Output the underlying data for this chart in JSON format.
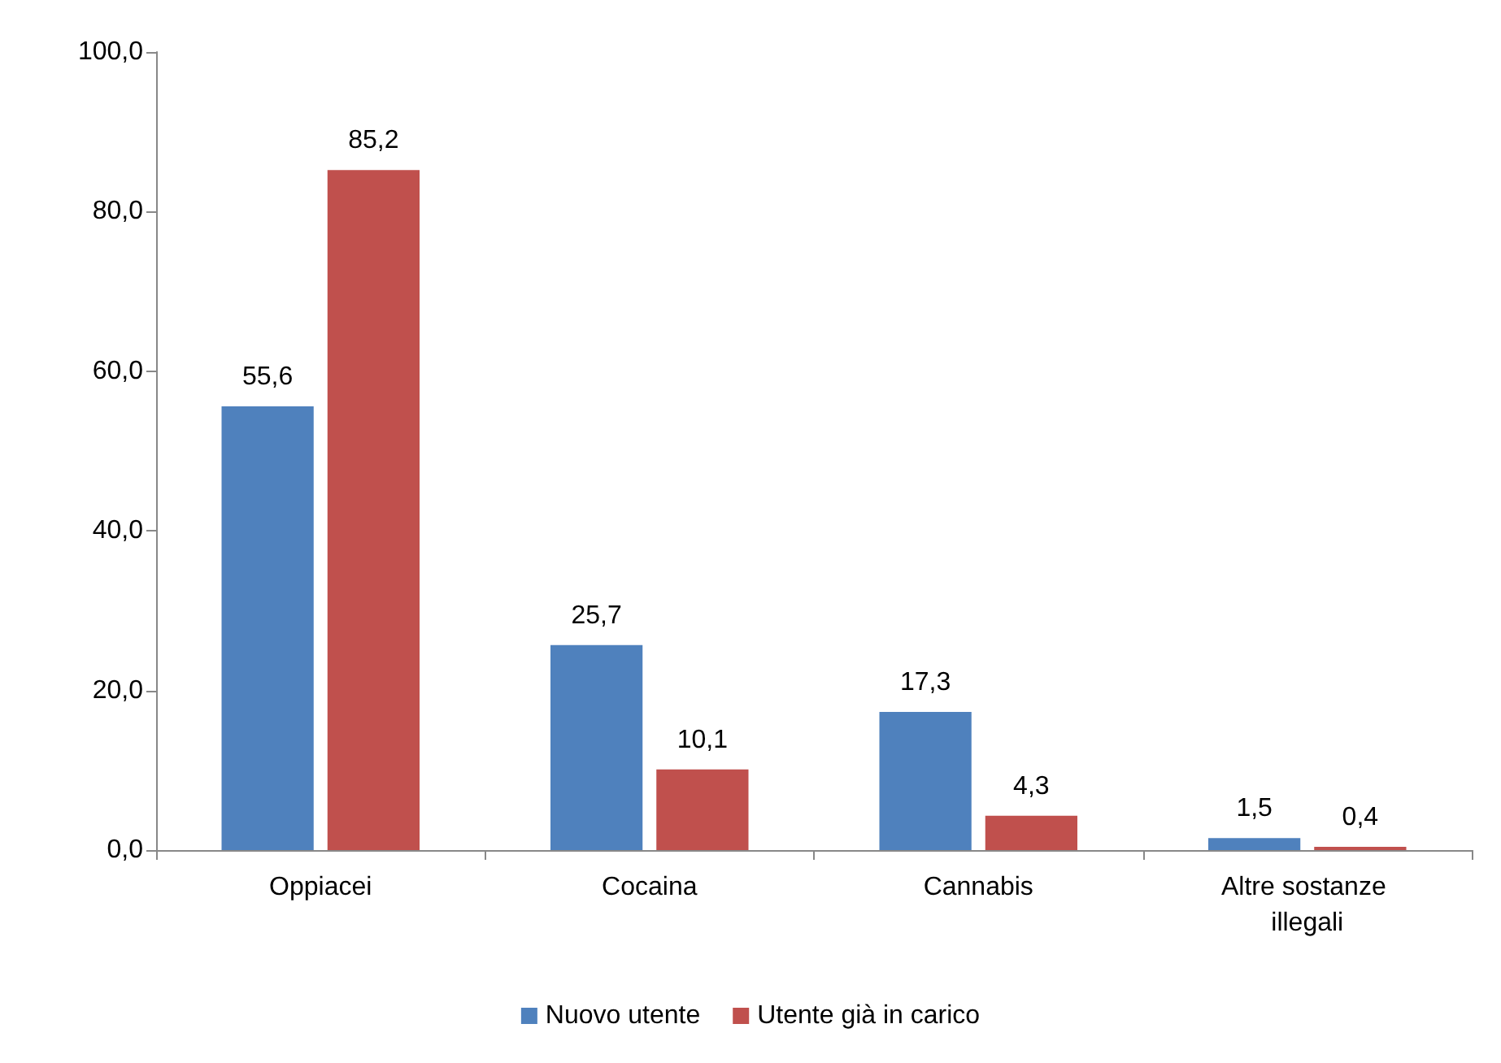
{
  "chart_data": {
    "type": "bar",
    "categories": [
      "Oppiacei",
      "Cocaina",
      "Cannabis",
      "Altre sostanze illegali"
    ],
    "series": [
      {
        "name": "Nuovo utente",
        "color": "#4f81bd",
        "values": [
          55.6,
          25.7,
          17.3,
          1.5
        ],
        "value_labels": [
          "55,6",
          "25,7",
          "17,3",
          "1,5"
        ]
      },
      {
        "name": "Utente già in carico",
        "color": "#c0504d",
        "values": [
          85.2,
          10.1,
          4.3,
          0.4
        ],
        "value_labels": [
          "85,2",
          "10,1",
          "4,3",
          "0,4"
        ]
      }
    ],
    "ylim": [
      0,
      100
    ],
    "yticks": [
      {
        "value": 0,
        "label": "0,0"
      },
      {
        "value": 20,
        "label": "20,0"
      },
      {
        "value": 40,
        "label": "40,0"
      },
      {
        "value": 60,
        "label": "60,0"
      },
      {
        "value": 80,
        "label": "80,0"
      },
      {
        "value": 100,
        "label": "100,0"
      }
    ],
    "grid": false,
    "legend": "bottom",
    "marker": "square"
  }
}
